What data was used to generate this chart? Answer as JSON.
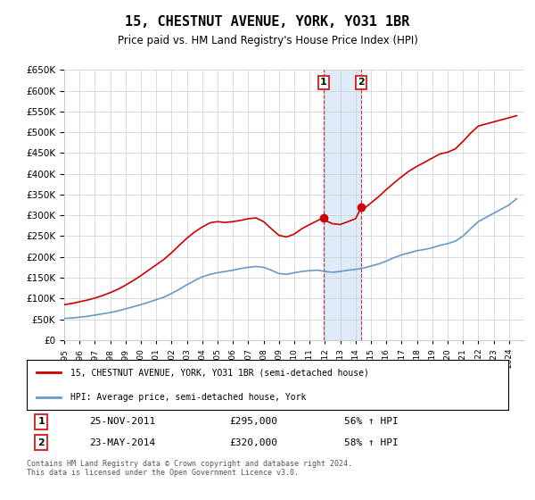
{
  "title": "15, CHESTNUT AVENUE, YORK, YO31 1BR",
  "subtitle": "Price paid vs. HM Land Registry's House Price Index (HPI)",
  "legend_label_red": "15, CHESTNUT AVENUE, YORK, YO31 1BR (semi-detached house)",
  "legend_label_blue": "HPI: Average price, semi-detached house, York",
  "transaction1_label": "1",
  "transaction1_date": "25-NOV-2011",
  "transaction1_price": 295000,
  "transaction1_hpi_pct": "56% ↑ HPI",
  "transaction1_year": 2011.9,
  "transaction2_label": "2",
  "transaction2_date": "23-MAY-2014",
  "transaction2_price": 320000,
  "transaction2_hpi_pct": "58% ↑ HPI",
  "transaction2_year": 2014.38,
  "footer": "Contains HM Land Registry data © Crown copyright and database right 2024.\nThis data is licensed under the Open Government Licence v3.0.",
  "red_color": "#cc0000",
  "blue_color": "#6699cc",
  "marker_color": "#cc0000",
  "shade_color": "#d0e4f7",
  "ylabel": "",
  "ylim_min": 0,
  "ylim_max": 650000,
  "xmin": 1995,
  "xmax": 2025,
  "background_color": "#ffffff",
  "grid_color": "#cccccc"
}
